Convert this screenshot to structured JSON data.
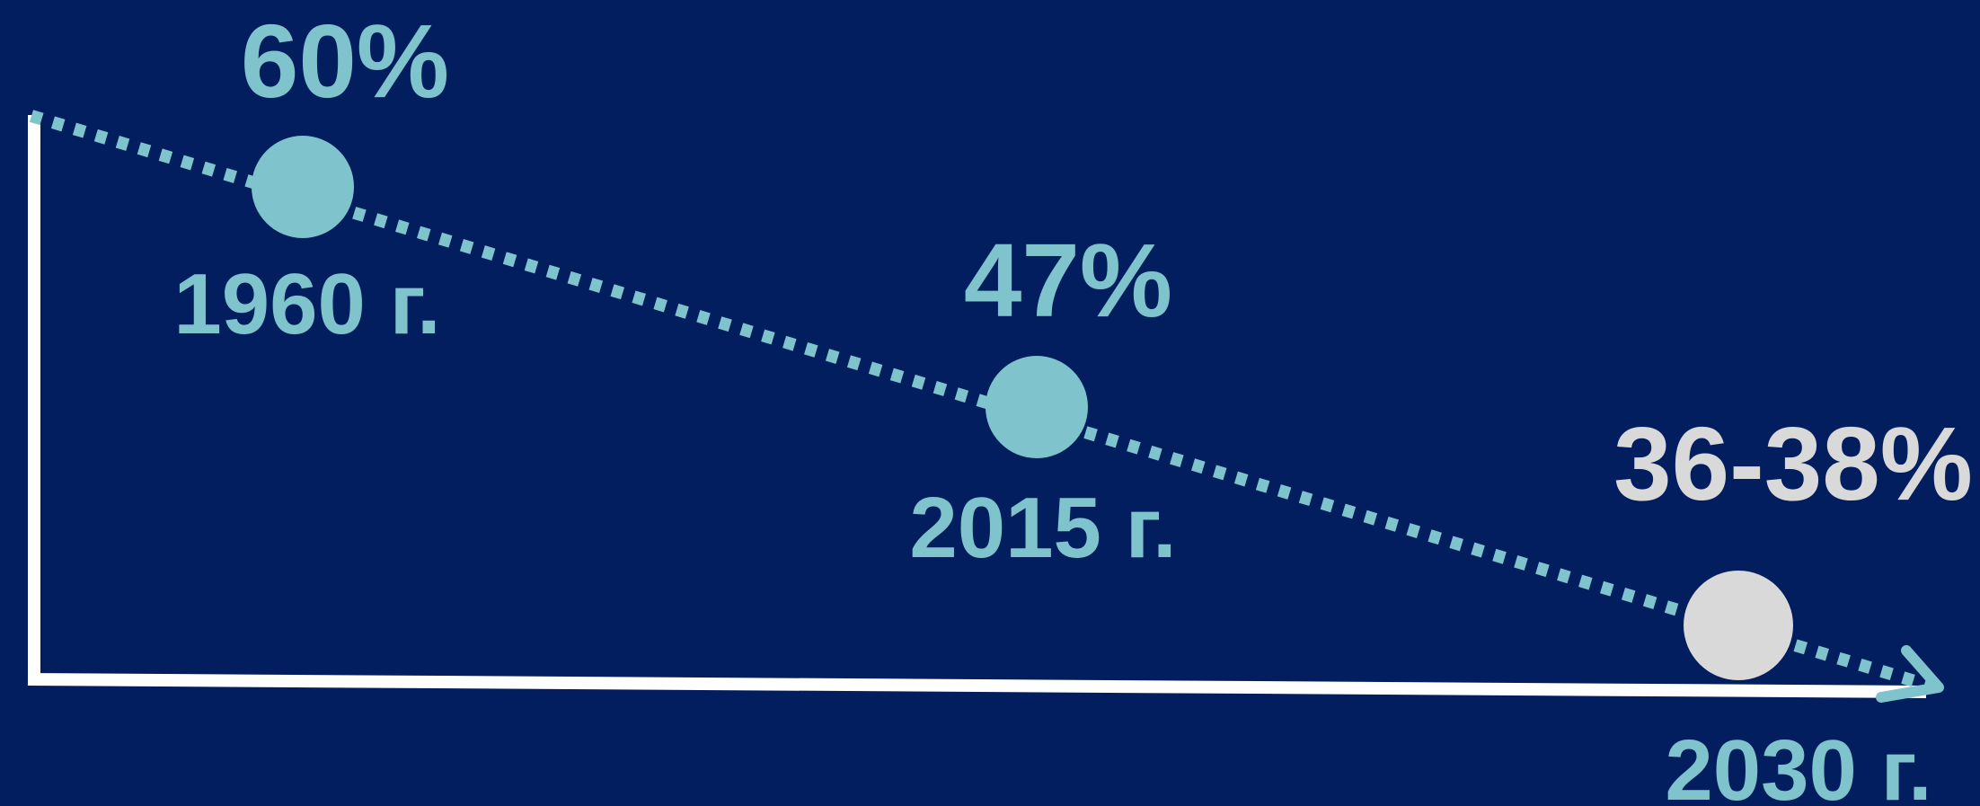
{
  "points": [
    {
      "value": "60%",
      "year": "1960 г."
    },
    {
      "value": "47%",
      "year": "2015 г."
    },
    {
      "value": "36-38%",
      "year": "2030 г."
    }
  ]
}
